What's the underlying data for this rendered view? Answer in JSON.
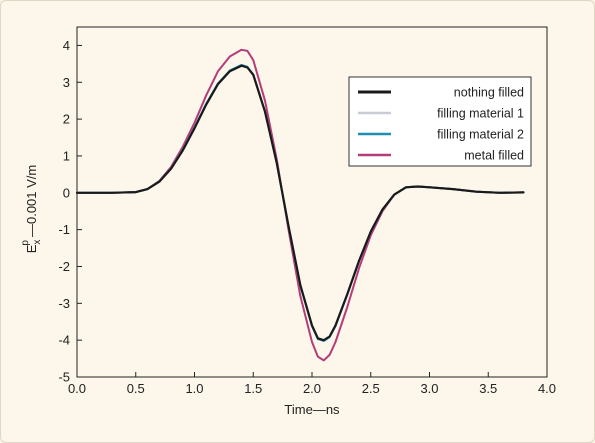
{
  "chart_data": {
    "type": "line",
    "title": "",
    "xlabel": "Time—ns",
    "ylabel_main": "E",
    "ylabel_sub": "x",
    "ylabel_sup": "p",
    "ylabel_tail": "—0.001 V/m",
    "xlim": [
      0.0,
      4.0
    ],
    "ylim": [
      -5,
      4.5
    ],
    "x_ticks": [
      "0.0",
      "0.5",
      "1.0",
      "1.5",
      "2.0",
      "2.5",
      "3.0",
      "3.5",
      "4.0"
    ],
    "x_tick_values": [
      0.0,
      0.5,
      1.0,
      1.5,
      2.0,
      2.5,
      3.0,
      3.5,
      4.0
    ],
    "y_ticks": [
      "4",
      "3",
      "2",
      "1",
      "0",
      "-1",
      "-2",
      "-3",
      "-4",
      "-5"
    ],
    "y_tick_values": [
      4,
      3,
      2,
      1,
      0,
      -1,
      -2,
      -3,
      -4,
      -5
    ],
    "grid": false,
    "legend_position": "top-right",
    "series": [
      {
        "name": "nothing filled",
        "color": "#1a1a1a",
        "x": [
          0.0,
          0.3,
          0.5,
          0.6,
          0.7,
          0.8,
          0.9,
          1.0,
          1.1,
          1.2,
          1.3,
          1.4,
          1.45,
          1.5,
          1.6,
          1.7,
          1.8,
          1.9,
          2.0,
          2.05,
          2.1,
          2.15,
          2.2,
          2.3,
          2.4,
          2.5,
          2.6,
          2.7,
          2.8,
          2.9,
          3.0,
          3.2,
          3.4,
          3.6,
          3.8
        ],
        "y": [
          0.0,
          0.0,
          0.02,
          0.1,
          0.3,
          0.65,
          1.15,
          1.75,
          2.4,
          2.95,
          3.3,
          3.45,
          3.4,
          3.2,
          2.2,
          0.8,
          -0.9,
          -2.5,
          -3.6,
          -3.95,
          -4.0,
          -3.9,
          -3.6,
          -2.75,
          -1.85,
          -1.05,
          -0.45,
          -0.05,
          0.15,
          0.17,
          0.15,
          0.1,
          0.03,
          0.0,
          0.01
        ]
      },
      {
        "name": "filling material 1",
        "color": "#c8ccd4",
        "x": [
          0.0,
          0.3,
          0.5,
          0.6,
          0.7,
          0.8,
          0.9,
          1.0,
          1.1,
          1.2,
          1.3,
          1.4,
          1.45,
          1.5,
          1.6,
          1.7,
          1.8,
          1.9,
          2.0,
          2.05,
          2.1,
          2.15,
          2.2,
          2.3,
          2.4,
          2.5,
          2.6,
          2.7,
          2.8,
          2.9,
          3.0,
          3.2,
          3.4,
          3.6,
          3.8
        ],
        "y": [
          0.0,
          0.0,
          0.02,
          0.1,
          0.3,
          0.66,
          1.16,
          1.76,
          2.41,
          2.96,
          3.31,
          3.46,
          3.41,
          3.2,
          2.2,
          0.8,
          -0.9,
          -2.5,
          -3.6,
          -3.95,
          -4.0,
          -3.9,
          -3.6,
          -2.75,
          -1.85,
          -1.05,
          -0.45,
          -0.05,
          0.15,
          0.17,
          0.15,
          0.1,
          0.03,
          0.0,
          0.01
        ]
      },
      {
        "name": "filling material 2",
        "color": "#1f8fb0",
        "x": [
          0.0,
          0.3,
          0.5,
          0.6,
          0.7,
          0.8,
          0.9,
          1.0,
          1.1,
          1.2,
          1.3,
          1.4,
          1.45,
          1.5,
          1.6,
          1.7,
          1.8,
          1.9,
          2.0,
          2.05,
          2.1,
          2.15,
          2.2,
          2.3,
          2.4,
          2.5,
          2.6,
          2.7,
          2.8,
          2.9,
          3.0,
          3.2,
          3.4,
          3.6,
          3.8
        ],
        "y": [
          0.0,
          0.0,
          0.02,
          0.1,
          0.31,
          0.66,
          1.17,
          1.77,
          2.42,
          2.97,
          3.32,
          3.47,
          3.42,
          3.21,
          2.21,
          0.81,
          -0.91,
          -2.52,
          -3.62,
          -3.97,
          -4.02,
          -3.92,
          -3.62,
          -2.76,
          -1.86,
          -1.06,
          -0.46,
          -0.05,
          0.15,
          0.17,
          0.15,
          0.1,
          0.03,
          0.0,
          0.01
        ]
      },
      {
        "name": "metal filled",
        "color": "#b43c78",
        "x": [
          0.0,
          0.3,
          0.5,
          0.6,
          0.7,
          0.8,
          0.9,
          1.0,
          1.1,
          1.2,
          1.3,
          1.4,
          1.45,
          1.5,
          1.6,
          1.7,
          1.8,
          1.9,
          2.0,
          2.05,
          2.1,
          2.15,
          2.2,
          2.3,
          2.4,
          2.5,
          2.6,
          2.7,
          2.8,
          2.9,
          3.0,
          3.2,
          3.4,
          3.6,
          3.8
        ],
        "y": [
          0.0,
          0.0,
          0.02,
          0.1,
          0.32,
          0.7,
          1.25,
          1.9,
          2.65,
          3.3,
          3.7,
          3.88,
          3.85,
          3.6,
          2.5,
          0.9,
          -1.0,
          -2.8,
          -4.05,
          -4.45,
          -4.55,
          -4.4,
          -4.05,
          -3.1,
          -2.05,
          -1.15,
          -0.5,
          -0.05,
          0.15,
          0.17,
          0.15,
          0.1,
          0.03,
          0.0,
          0.01
        ]
      }
    ]
  }
}
